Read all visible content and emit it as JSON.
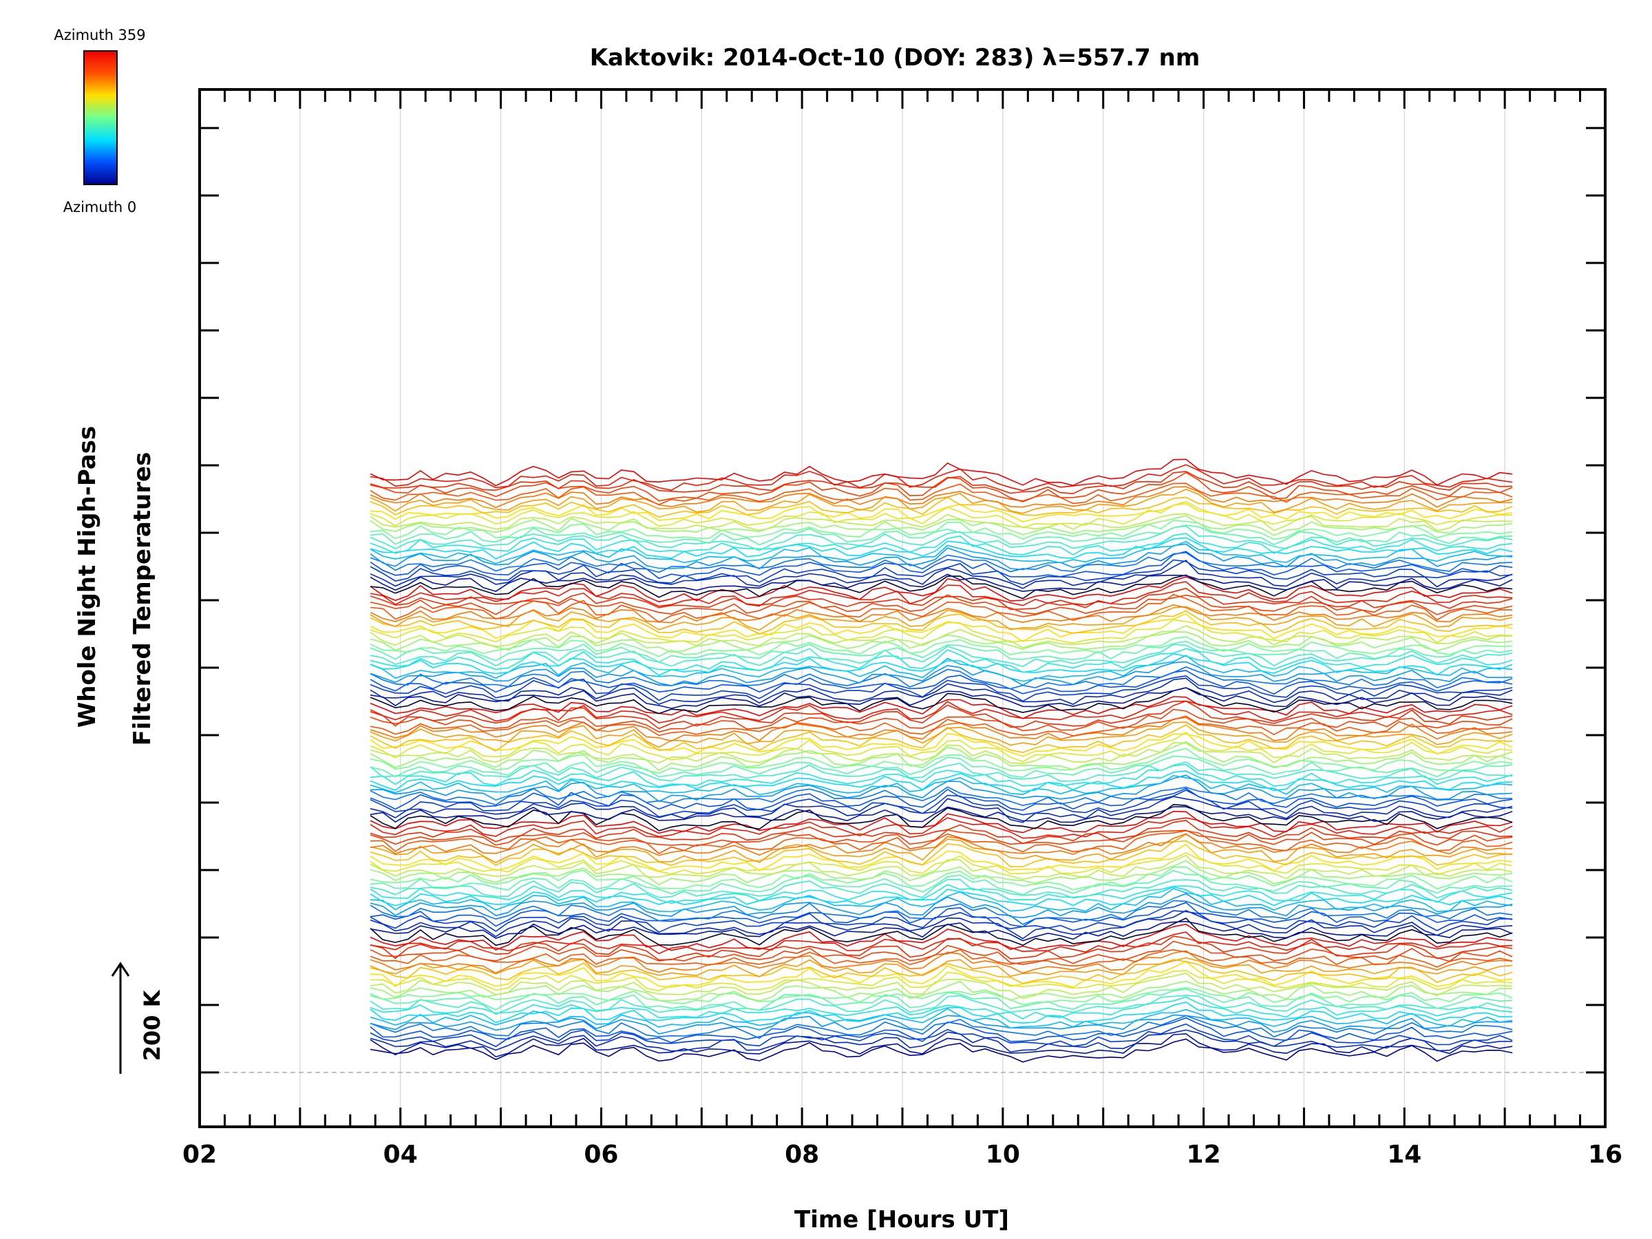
{
  "chart_data": {
    "type": "line",
    "title": "Kaktovik: 2014-Oct-10 (DOY: 283) λ=557.7 nm",
    "xlabel": "Time [Hours UT]",
    "ylabel_lines": [
      "Whole Night High-Pass",
      "Filtered Temperatures"
    ],
    "xlim": [
      2,
      16
    ],
    "x_ticks": [
      2,
      4,
      6,
      8,
      10,
      12,
      14,
      16
    ],
    "x_tick_labels": [
      "02",
      "04",
      "06",
      "08",
      "10",
      "12",
      "14",
      "16"
    ],
    "x_minor_step": 0.25,
    "y_tick_count": 15,
    "grid_vertical": true,
    "data_start_hour": 3.7,
    "data_end_hour": 15.15,
    "offset_step_k": 5,
    "legend": {
      "type": "colorbar",
      "placement": "top-left",
      "top_label": "Azimuth 359",
      "bottom_label": "Azimuth 0",
      "colors": [
        "#00008f",
        "#0050ff",
        "#00dfff",
        "#70ff8f",
        "#ffdf00",
        "#ff5000",
        "#ef0000"
      ]
    },
    "scale_bar": {
      "label": "200 K",
      "placement": "bottom-left"
    },
    "series_description": "Stacked, vertically offset high-pass filtered temperature traces, one per azimuth, colored by azimuth (0–359); features common to all traces: peaks near 05.8, 09.5 and 11.8 UT and a trough near 10.5 UT."
  }
}
